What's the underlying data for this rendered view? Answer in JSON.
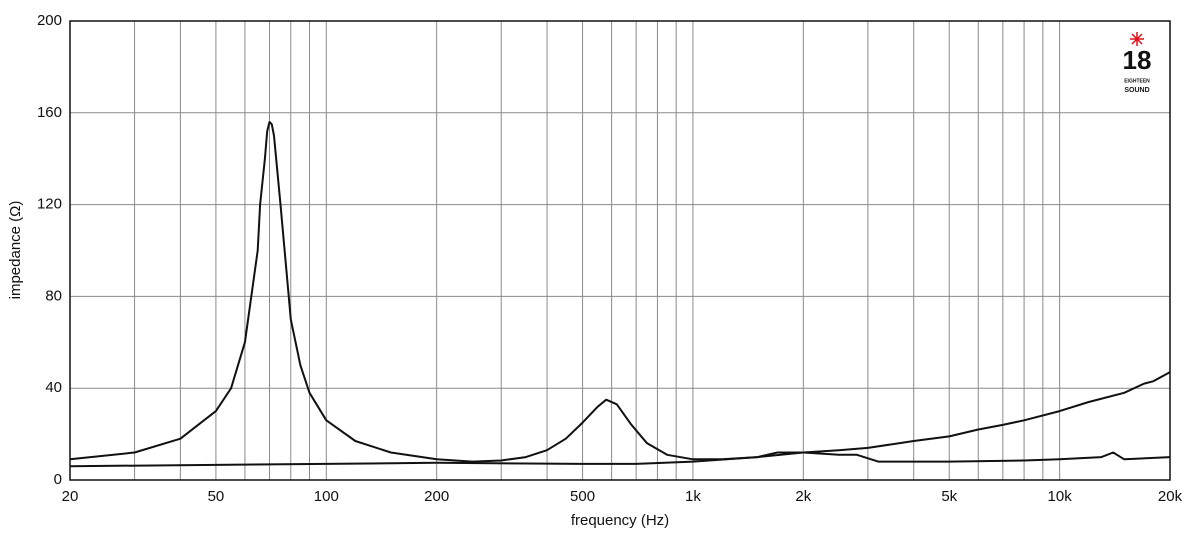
{
  "chart_data": {
    "type": "line",
    "xlabel": "frequency (Hz)",
    "ylabel": "impedance (Ω)",
    "xscale": "log",
    "grid": true,
    "xlim": [
      20,
      20000
    ],
    "ylim": [
      0,
      200
    ],
    "xticks": [
      20,
      50,
      100,
      200,
      500,
      {
        "value": 1000,
        "label": "1k"
      },
      {
        "value": 2000,
        "label": "2k"
      },
      {
        "value": 5000,
        "label": "5k"
      },
      {
        "value": 10000,
        "label": "10k"
      },
      {
        "value": 20000,
        "label": "20k"
      }
    ],
    "xminor": [
      30,
      40,
      60,
      70,
      80,
      90,
      300,
      400,
      600,
      700,
      800,
      900,
      3000,
      4000,
      6000,
      7000,
      8000,
      9000
    ],
    "yticks": [
      0,
      40,
      80,
      120,
      160,
      200
    ],
    "logo": [
      "18",
      "EIGHTEEN",
      "SOUND"
    ],
    "series": [
      {
        "color": "#111111",
        "x": [
          20,
          30,
          40,
          50,
          55,
          60,
          65,
          66,
          68,
          69,
          70,
          71,
          72,
          75,
          80,
          85,
          90,
          100,
          120,
          150,
          200,
          250,
          300,
          350,
          400,
          450,
          500,
          550,
          580,
          620,
          680,
          750,
          850,
          1000,
          1200,
          1500,
          2000,
          2500,
          3000,
          4000,
          5000,
          6000,
          7000,
          8000,
          10000,
          12000,
          15000,
          17000,
          18000,
          20000
        ],
        "values": [
          9,
          12,
          18,
          30,
          40,
          60,
          100,
          120,
          140,
          152,
          156,
          155,
          150,
          120,
          70,
          50,
          38,
          26,
          17,
          12,
          9,
          8,
          8.5,
          10,
          13,
          18,
          25,
          32,
          35,
          33,
          24,
          16,
          11,
          9,
          9,
          10,
          12,
          13,
          14,
          17,
          19,
          22,
          24,
          26,
          30,
          34,
          38,
          42,
          43,
          47
        ]
      },
      {
        "color": "#111111",
        "x": [
          20,
          100,
          200,
          500,
          700,
          1000,
          1500,
          1700,
          2000,
          2500,
          2800,
          3200,
          5000,
          8000,
          10000,
          13000,
          14000,
          15000,
          20000
        ],
        "values": [
          6,
          7,
          7.5,
          7,
          7,
          8,
          10,
          12,
          12,
          11,
          11,
          8,
          8,
          8.5,
          9,
          10,
          12,
          9,
          10
        ]
      }
    ]
  }
}
